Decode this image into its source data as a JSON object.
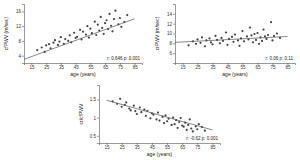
{
  "chart_data": [
    {
      "type": "scatter",
      "x_label": "age (years)",
      "y_label": "cfPWV (m/sec)",
      "annotation": "r: 0.646 p: 0.001",
      "xlim": [
        10,
        90
      ],
      "xticks": [
        15,
        25,
        35,
        45,
        55,
        65,
        75,
        85
      ],
      "ylim": [
        2,
        18
      ],
      "yticks": [
        4,
        8,
        12,
        16
      ],
      "series": [
        {
          "type": "scatter",
          "color": "#444444",
          "marker": "circle",
          "x": [
            19,
            22,
            24,
            25,
            27,
            28,
            30,
            31,
            33,
            34,
            35,
            37,
            38,
            40,
            41,
            42,
            44,
            45,
            46,
            48,
            49,
            50,
            52,
            53,
            54,
            55,
            56,
            58,
            59,
            60,
            61,
            62,
            63,
            64,
            65,
            66,
            67,
            68,
            69,
            70,
            71,
            72,
            74,
            75,
            76,
            78,
            80
          ],
          "values": [
            5.5,
            6.2,
            5.0,
            6.8,
            7.1,
            6.0,
            7.5,
            8.2,
            6.9,
            7.8,
            9.0,
            7.2,
            8.5,
            8.0,
            9.5,
            7.6,
            10.2,
            8.8,
            9.1,
            11.0,
            8.4,
            10.5,
            9.7,
            12.0,
            8.9,
            11.3,
            10.1,
            13.2,
            9.6,
            12.4,
            10.8,
            14.5,
            11.5,
            9.9,
            12.8,
            13.6,
            11.2,
            15.3,
            12.1,
            10.6,
            13.9,
            16.2,
            12.5,
            14.2,
            11.8,
            13.1,
            15.0
          ]
        },
        {
          "type": "line",
          "color": "#555555",
          "line_style": "solid",
          "x": [
            10,
            85
          ],
          "values": [
            3.0,
            14.0
          ]
        }
      ]
    },
    {
      "type": "scatter",
      "x_label": "age (years)",
      "y_label": "crPWV (m/sec)",
      "annotation": "r: 0.06 p: 0.11",
      "xlim": [
        10,
        90
      ],
      "xticks": [
        15,
        25,
        35,
        45,
        55,
        65,
        75,
        85
      ],
      "ylim": [
        4,
        16
      ],
      "yticks": [
        6,
        8,
        10,
        12,
        14
      ],
      "series": [
        {
          "type": "scatter",
          "color": "#444444",
          "marker": "circle",
          "x": [
            19,
            22,
            24,
            25,
            27,
            28,
            30,
            31,
            33,
            34,
            35,
            37,
            38,
            40,
            41,
            42,
            44,
            45,
            46,
            48,
            49,
            50,
            52,
            53,
            54,
            55,
            56,
            58,
            59,
            60,
            61,
            62,
            63,
            64,
            65,
            66,
            67,
            68,
            69,
            70,
            71,
            72,
            74,
            75,
            76,
            78,
            80
          ],
          "values": [
            7.6,
            8.4,
            7.9,
            8.8,
            8.1,
            9.2,
            7.4,
            8.6,
            9.0,
            8.2,
            7.8,
            9.5,
            8.7,
            8.0,
            9.1,
            8.5,
            10.2,
            7.7,
            8.9,
            9.3,
            8.3,
            9.8,
            8.6,
            7.5,
            9.0,
            10.5,
            8.4,
            9.4,
            8.8,
            11.2,
            9.6,
            8.2,
            9.9,
            8.7,
            10.1,
            7.9,
            9.2,
            8.5,
            10.8,
            9.4,
            8.9,
            9.7,
            12.3,
            8.6,
            9.5,
            10.0,
            9.1
          ]
        },
        {
          "type": "line",
          "color": "#555555",
          "line_style": "solid",
          "x": [
            10,
            85
          ],
          "values": [
            8.2,
            9.4
          ]
        }
      ]
    },
    {
      "type": "scatter",
      "x_label": "age (years)",
      "y_label": "cr/cfPWV",
      "annotation": "r: -0.62 p: 0.001",
      "xlim": [
        10,
        90
      ],
      "xticks": [
        15,
        25,
        35,
        45,
        55,
        65,
        75,
        85
      ],
      "ylim": [
        0.3,
        1.9
      ],
      "yticks": [
        0.5,
        1,
        1.5
      ],
      "series": [
        {
          "type": "scatter",
          "color": "#444444",
          "marker": "circle",
          "x": [
            19,
            22,
            24,
            25,
            27,
            28,
            30,
            31,
            33,
            34,
            35,
            37,
            38,
            40,
            41,
            42,
            44,
            45,
            46,
            48,
            49,
            50,
            52,
            53,
            54,
            55,
            56,
            58,
            59,
            60,
            61,
            62,
            63,
            64,
            65,
            66,
            67,
            68,
            69,
            70,
            71,
            72,
            74,
            75,
            76,
            78,
            80
          ],
          "values": [
            1.45,
            1.38,
            1.52,
            1.3,
            1.35,
            1.42,
            1.25,
            1.2,
            1.33,
            1.18,
            1.1,
            1.28,
            1.15,
            1.22,
            1.05,
            1.19,
            0.98,
            1.12,
            1.08,
            0.95,
            1.14,
            0.92,
            1.02,
            0.85,
            1.06,
            0.9,
            0.97,
            0.8,
            1.0,
            0.82,
            0.93,
            0.72,
            0.88,
            0.99,
            0.78,
            0.75,
            0.86,
            0.66,
            0.8,
            0.95,
            0.7,
            0.62,
            0.76,
            0.68,
            0.82,
            0.74,
            0.64
          ]
        },
        {
          "type": "line",
          "color": "#555555",
          "line_style": "solid",
          "x": [
            15,
            85
          ],
          "values": [
            1.48,
            0.66
          ]
        }
      ]
    }
  ]
}
